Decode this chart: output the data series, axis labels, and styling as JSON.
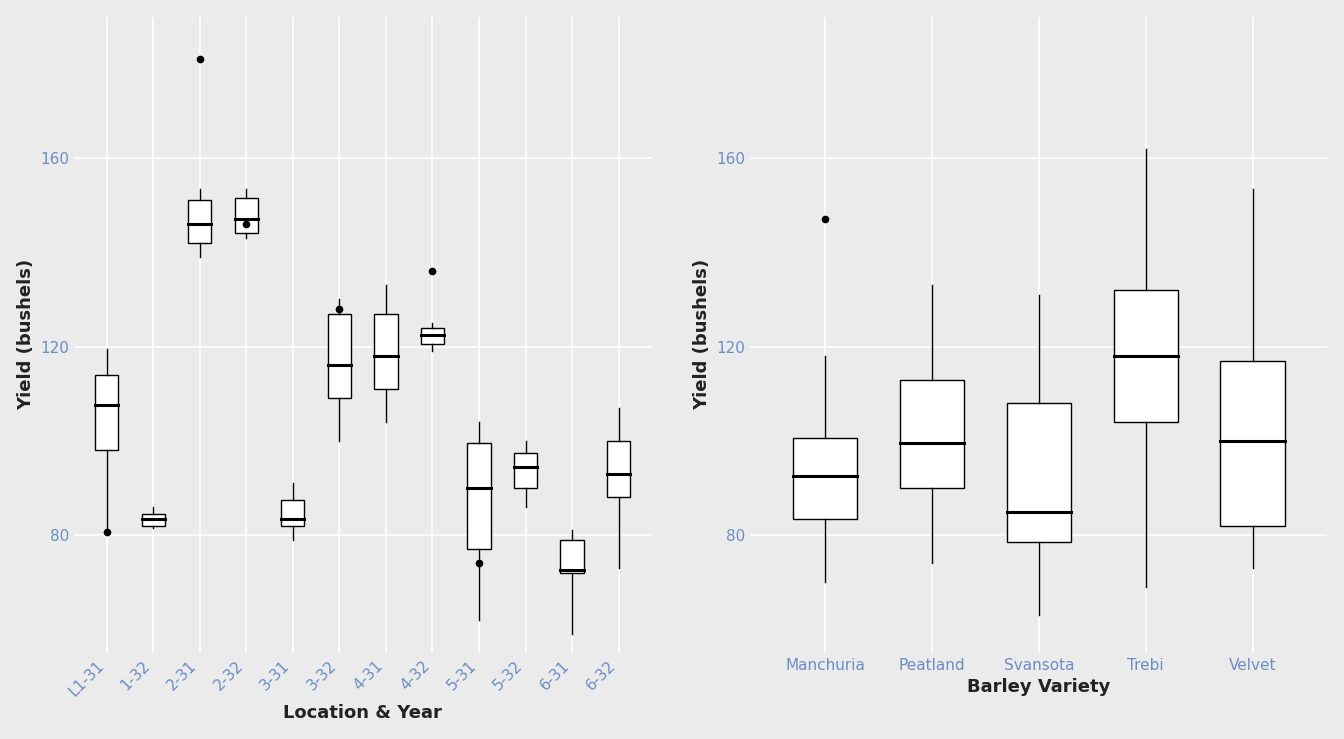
{
  "location_year_labels": [
    "L1-31",
    "1-32",
    "2-31",
    "2-32",
    "3-31",
    "3-32",
    "4-31",
    "4-32",
    "5-31",
    "5-32",
    "6-31",
    "6-32"
  ],
  "variety_labels": [
    "Manchuria",
    "Peatland",
    "Svansota",
    "Trebi",
    "Velvet"
  ],
  "left_title": "Location & Year",
  "right_title": "Barley Variety",
  "ylabel": "Yield (bushels)",
  "background_color": "#EBEBEB",
  "grid_color": "#FFFFFF",
  "box_facecolor": "#FFFFFF",
  "box_edgecolor": "#000000",
  "median_color": "#000000",
  "flier_color": "#000000",
  "tick_color": "#6b8dc4",
  "ylim_left": [
    55,
    190
  ],
  "ylim_right": [
    55,
    190
  ],
  "yticks": [
    80,
    120,
    160
  ],
  "left_boxes": [
    {
      "q1": 98.0,
      "median": 107.5,
      "q3": 114.0,
      "whislo": 81.0,
      "whishi": 119.5,
      "fliers": [
        80.7
      ]
    },
    {
      "q1": 82.0,
      "median": 83.5,
      "q3": 84.5,
      "whislo": 81.5,
      "whishi": 86.0,
      "fliers": []
    },
    {
      "q1": 142.0,
      "median": 146.0,
      "q3": 151.0,
      "whislo": 139.0,
      "whishi": 153.5,
      "fliers": [
        181.0
      ]
    },
    {
      "q1": 144.0,
      "median": 147.0,
      "q3": 151.5,
      "whislo": 143.0,
      "whishi": 153.5,
      "fliers": [
        146.0
      ]
    },
    {
      "q1": 82.0,
      "median": 83.5,
      "q3": 87.5,
      "whislo": 79.0,
      "whishi": 91.0,
      "fliers": []
    },
    {
      "q1": 109.0,
      "median": 116.0,
      "q3": 127.0,
      "whislo": 100.0,
      "whishi": 130.0,
      "fliers": [
        128.0
      ]
    },
    {
      "q1": 111.0,
      "median": 118.0,
      "q3": 127.0,
      "whislo": 104.0,
      "whishi": 133.0,
      "fliers": []
    },
    {
      "q1": 120.5,
      "median": 122.5,
      "q3": 124.0,
      "whislo": 119.0,
      "whishi": 125.0,
      "fliers": [
        136.0
      ]
    },
    {
      "q1": 77.0,
      "median": 90.0,
      "q3": 99.5,
      "whislo": 62.0,
      "whishi": 104.0,
      "fliers": [
        74.0
      ]
    },
    {
      "q1": 90.0,
      "median": 94.5,
      "q3": 97.5,
      "whislo": 86.0,
      "whishi": 100.0,
      "fliers": []
    },
    {
      "q1": 72.0,
      "median": 72.5,
      "q3": 79.0,
      "whislo": 59.0,
      "whishi": 81.0,
      "fliers": []
    },
    {
      "q1": 88.0,
      "median": 93.0,
      "q3": 100.0,
      "whislo": 73.0,
      "whishi": 107.0,
      "fliers": []
    }
  ],
  "right_boxes": [
    {
      "q1": 83.5,
      "median": 92.5,
      "q3": 100.5,
      "whislo": 70.0,
      "whishi": 118.0,
      "fliers": [
        147.0
      ]
    },
    {
      "q1": 90.0,
      "median": 99.5,
      "q3": 113.0,
      "whislo": 74.0,
      "whishi": 133.0,
      "fliers": []
    },
    {
      "q1": 78.5,
      "median": 85.0,
      "q3": 108.0,
      "whislo": 63.0,
      "whishi": 131.0,
      "fliers": []
    },
    {
      "q1": 104.0,
      "median": 118.0,
      "q3": 132.0,
      "whislo": 69.0,
      "whishi": 162.0,
      "fliers": []
    },
    {
      "q1": 82.0,
      "median": 100.0,
      "q3": 117.0,
      "whislo": 73.0,
      "whishi": 153.5,
      "fliers": []
    }
  ]
}
